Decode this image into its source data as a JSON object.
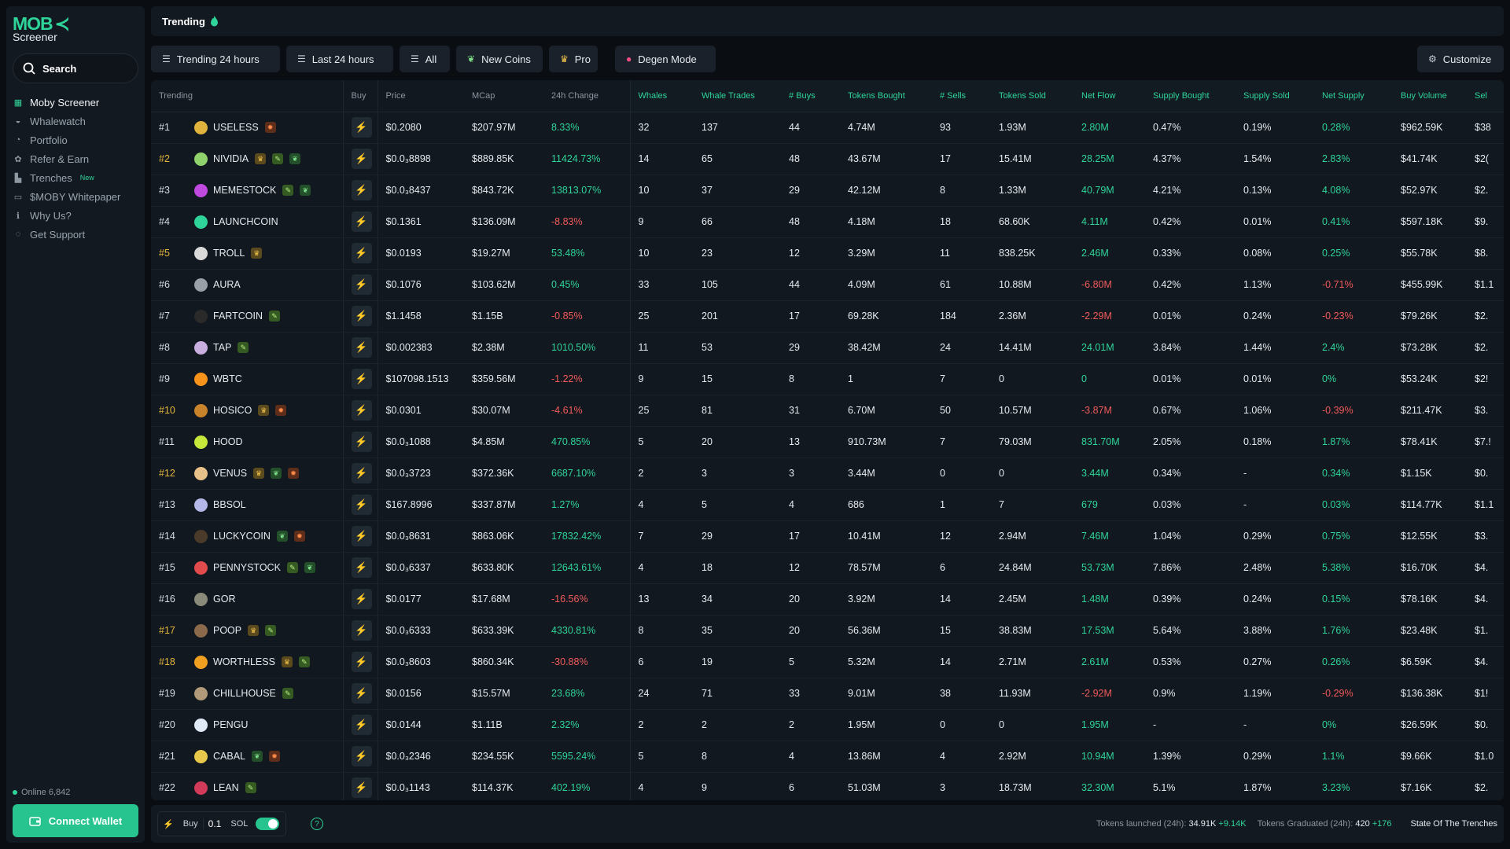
{
  "app": {
    "logo_text": "MOB",
    "logo_sub": "Screener"
  },
  "sidebar": {
    "search_label": "Search",
    "items": [
      {
        "label": "Moby Screener",
        "icon": "moby-icon"
      },
      {
        "label": "Whalewatch",
        "icon": "whale-icon"
      },
      {
        "label": "Portfolio",
        "icon": "pie-chart-icon"
      },
      {
        "label": "Refer & Earn",
        "icon": "gift-icon"
      },
      {
        "label": "Trenches",
        "icon": "chart-icon",
        "badge": "New"
      },
      {
        "label": "$MOBY Whitepaper",
        "icon": "book-icon"
      },
      {
        "label": "Why Us?",
        "icon": "info-icon"
      },
      {
        "label": "Get Support",
        "icon": "headset-icon"
      }
    ],
    "online": "Online 6,842",
    "connect": "Connect Wallet"
  },
  "header": {
    "title": "Trending"
  },
  "toolbar": {
    "trending": "Trending 24 hours",
    "last": "Last 24 hours",
    "all": "All",
    "new_coins": "New Coins",
    "pro": "Pro",
    "degen": "Degen Mode",
    "customize": "Customize"
  },
  "table": {
    "columns": [
      "Trending",
      "Buy",
      "Price",
      "MCap",
      "24h Change",
      "Whales",
      "Whale Trades",
      "# Buys",
      "Tokens Bought",
      "# Sells",
      "Tokens Sold",
      "Net Flow",
      "Supply Bought",
      "Supply Sold",
      "Net Supply",
      "Buy Volume",
      "Sel"
    ],
    "rows": [
      {
        "rank": "#1",
        "gold": false,
        "name": "USELESS",
        "color": "#e0b33c",
        "badges": [
          "fire"
        ],
        "price": "$0.2080",
        "mcap": "$207.97M",
        "change": "8.33%",
        "whales": "32",
        "whale_trades": "137",
        "buys": "44",
        "tokens_bought": "4.74M",
        "sells": "93",
        "tokens_sold": "1.93M",
        "net_flow": "2.80M",
        "supply_bought": "0.47%",
        "supply_sold": "0.19%",
        "net_supply": "0.28%",
        "buy_volume": "$962.59K",
        "sell": "$38"
      },
      {
        "rank": "#2",
        "gold": true,
        "name": "NIVIDIA",
        "color": "#8fd16b",
        "badges": [
          "crown",
          "pill",
          "sprout"
        ],
        "price": "$0.0₃8898",
        "mcap": "$889.85K",
        "change": "11424.73%",
        "whales": "14",
        "whale_trades": "65",
        "buys": "48",
        "tokens_bought": "43.67M",
        "sells": "17",
        "tokens_sold": "15.41M",
        "net_flow": "28.25M",
        "supply_bought": "4.37%",
        "supply_sold": "1.54%",
        "net_supply": "2.83%",
        "buy_volume": "$41.74K",
        "sell": "$2("
      },
      {
        "rank": "#3",
        "gold": false,
        "name": "MEMESTOCK",
        "color": "#c04adf",
        "badges": [
          "pill",
          "sprout"
        ],
        "price": "$0.0₃8437",
        "mcap": "$843.72K",
        "change": "13813.07%",
        "whales": "10",
        "whale_trades": "37",
        "buys": "29",
        "tokens_bought": "42.12M",
        "sells": "8",
        "tokens_sold": "1.33M",
        "net_flow": "40.79M",
        "supply_bought": "4.21%",
        "supply_sold": "0.13%",
        "net_supply": "4.08%",
        "buy_volume": "$52.97K",
        "sell": "$2."
      },
      {
        "rank": "#4",
        "gold": false,
        "name": "LAUNCHCOIN",
        "color": "#2fd49a",
        "badges": [],
        "price": "$0.1361",
        "mcap": "$136.09M",
        "change": "-8.83%",
        "whales": "9",
        "whale_trades": "66",
        "buys": "48",
        "tokens_bought": "4.18M",
        "sells": "18",
        "tokens_sold": "68.60K",
        "net_flow": "4.11M",
        "supply_bought": "0.42%",
        "supply_sold": "0.01%",
        "net_supply": "0.41%",
        "buy_volume": "$597.18K",
        "sell": "$9."
      },
      {
        "rank": "#5",
        "gold": true,
        "name": "TROLL",
        "color": "#d9d9d9",
        "badges": [
          "crown"
        ],
        "price": "$0.0193",
        "mcap": "$19.27M",
        "change": "53.48%",
        "whales": "10",
        "whale_trades": "23",
        "buys": "12",
        "tokens_bought": "3.29M",
        "sells": "11",
        "tokens_sold": "838.25K",
        "net_flow": "2.46M",
        "supply_bought": "0.33%",
        "supply_sold": "0.08%",
        "net_supply": "0.25%",
        "buy_volume": "$55.78K",
        "sell": "$8."
      },
      {
        "rank": "#6",
        "gold": false,
        "name": "AURA",
        "color": "#9aa0a8",
        "badges": [],
        "price": "$0.1076",
        "mcap": "$103.62M",
        "change": "0.45%",
        "whales": "33",
        "whale_trades": "105",
        "buys": "44",
        "tokens_bought": "4.09M",
        "sells": "61",
        "tokens_sold": "10.88M",
        "net_flow": "-6.80M",
        "supply_bought": "0.42%",
        "supply_sold": "1.13%",
        "net_supply": "-0.71%",
        "buy_volume": "$455.99K",
        "sell": "$1.1"
      },
      {
        "rank": "#7",
        "gold": false,
        "name": "FARTCOIN",
        "color": "#2a2a2a",
        "badges": [
          "pill"
        ],
        "price": "$1.1458",
        "mcap": "$1.15B",
        "change": "-0.85%",
        "whales": "25",
        "whale_trades": "201",
        "buys": "17",
        "tokens_bought": "69.28K",
        "sells": "184",
        "tokens_sold": "2.36M",
        "net_flow": "-2.29M",
        "supply_bought": "0.01%",
        "supply_sold": "0.24%",
        "net_supply": "-0.23%",
        "buy_volume": "$79.26K",
        "sell": "$2."
      },
      {
        "rank": "#8",
        "gold": false,
        "name": "TAP",
        "color": "#c9aee0",
        "badges": [
          "pill"
        ],
        "price": "$0.002383",
        "mcap": "$2.38M",
        "change": "1010.50%",
        "whales": "11",
        "whale_trades": "53",
        "buys": "29",
        "tokens_bought": "38.42M",
        "sells": "24",
        "tokens_sold": "14.41M",
        "net_flow": "24.01M",
        "supply_bought": "3.84%",
        "supply_sold": "1.44%",
        "net_supply": "2.4%",
        "buy_volume": "$73.28K",
        "sell": "$2."
      },
      {
        "rank": "#9",
        "gold": false,
        "name": "WBTC",
        "color": "#f7931a",
        "badges": [],
        "price": "$107098.1513",
        "mcap": "$359.56M",
        "change": "-1.22%",
        "whales": "9",
        "whale_trades": "15",
        "buys": "8",
        "tokens_bought": "1",
        "sells": "7",
        "tokens_sold": "0",
        "net_flow": "0",
        "supply_bought": "0.01%",
        "supply_sold": "0.01%",
        "net_supply": "0%",
        "buy_volume": "$53.24K",
        "sell": "$2!"
      },
      {
        "rank": "#10",
        "gold": true,
        "name": "HOSICO",
        "color": "#c9842b",
        "badges": [
          "crown",
          "fire"
        ],
        "price": "$0.0301",
        "mcap": "$30.07M",
        "change": "-4.61%",
        "whales": "25",
        "whale_trades": "81",
        "buys": "31",
        "tokens_bought": "6.70M",
        "sells": "50",
        "tokens_sold": "10.57M",
        "net_flow": "-3.87M",
        "supply_bought": "0.67%",
        "supply_sold": "1.06%",
        "net_supply": "-0.39%",
        "buy_volume": "$211.47K",
        "sell": "$3."
      },
      {
        "rank": "#11",
        "gold": false,
        "name": "HOOD",
        "color": "#c5e83a",
        "badges": [],
        "price": "$0.0₃1088",
        "mcap": "$4.85M",
        "change": "470.85%",
        "whales": "5",
        "whale_trades": "20",
        "buys": "13",
        "tokens_bought": "910.73M",
        "sells": "7",
        "tokens_sold": "79.03M",
        "net_flow": "831.70M",
        "supply_bought": "2.05%",
        "supply_sold": "0.18%",
        "net_supply": "1.87%",
        "buy_volume": "$78.41K",
        "sell": "$7.!"
      },
      {
        "rank": "#12",
        "gold": true,
        "name": "VENUS",
        "color": "#e8c08a",
        "badges": [
          "crown",
          "sprout",
          "fire"
        ],
        "price": "$0.0₃3723",
        "mcap": "$372.36K",
        "change": "6687.10%",
        "whales": "2",
        "whale_trades": "3",
        "buys": "3",
        "tokens_bought": "3.44M",
        "sells": "0",
        "tokens_sold": "0",
        "net_flow": "3.44M",
        "supply_bought": "0.34%",
        "supply_sold": "-",
        "net_supply": "0.34%",
        "buy_volume": "$1.15K",
        "sell": "$0."
      },
      {
        "rank": "#13",
        "gold": false,
        "name": "BBSOL",
        "color": "#b3b8e8",
        "badges": [],
        "price": "$167.8996",
        "mcap": "$337.87M",
        "change": "1.27%",
        "whales": "4",
        "whale_trades": "5",
        "buys": "4",
        "tokens_bought": "686",
        "sells": "1",
        "tokens_sold": "7",
        "net_flow": "679",
        "supply_bought": "0.03%",
        "supply_sold": "-",
        "net_supply": "0.03%",
        "buy_volume": "$114.77K",
        "sell": "$1.1"
      },
      {
        "rank": "#14",
        "gold": false,
        "name": "LUCKYCOIN",
        "color": "#4a3a2a",
        "badges": [
          "sprout",
          "fire"
        ],
        "price": "$0.0₃8631",
        "mcap": "$863.06K",
        "change": "17832.42%",
        "whales": "7",
        "whale_trades": "29",
        "buys": "17",
        "tokens_bought": "10.41M",
        "sells": "12",
        "tokens_sold": "2.94M",
        "net_flow": "7.46M",
        "supply_bought": "1.04%",
        "supply_sold": "0.29%",
        "net_supply": "0.75%",
        "buy_volume": "$12.55K",
        "sell": "$3."
      },
      {
        "rank": "#15",
        "gold": false,
        "name": "PENNYSTOCK",
        "color": "#e24b4b",
        "badges": [
          "pill",
          "sprout"
        ],
        "price": "$0.0₃6337",
        "mcap": "$633.80K",
        "change": "12643.61%",
        "whales": "4",
        "whale_trades": "18",
        "buys": "12",
        "tokens_bought": "78.57M",
        "sells": "6",
        "tokens_sold": "24.84M",
        "net_flow": "53.73M",
        "supply_bought": "7.86%",
        "supply_sold": "2.48%",
        "net_supply": "5.38%",
        "buy_volume": "$16.70K",
        "sell": "$4."
      },
      {
        "rank": "#16",
        "gold": false,
        "name": "GOR",
        "color": "#8a8a7a",
        "badges": [],
        "price": "$0.0177",
        "mcap": "$17.68M",
        "change": "-16.56%",
        "whales": "13",
        "whale_trades": "34",
        "buys": "20",
        "tokens_bought": "3.92M",
        "sells": "14",
        "tokens_sold": "2.45M",
        "net_flow": "1.48M",
        "supply_bought": "0.39%",
        "supply_sold": "0.24%",
        "net_supply": "0.15%",
        "buy_volume": "$78.16K",
        "sell": "$4."
      },
      {
        "rank": "#17",
        "gold": true,
        "name": "POOP",
        "color": "#8a6a4a",
        "badges": [
          "crown",
          "pill"
        ],
        "price": "$0.0₃6333",
        "mcap": "$633.39K",
        "change": "4330.81%",
        "whales": "8",
        "whale_trades": "35",
        "buys": "20",
        "tokens_bought": "56.36M",
        "sells": "15",
        "tokens_sold": "38.83M",
        "net_flow": "17.53M",
        "supply_bought": "5.64%",
        "supply_sold": "3.88%",
        "net_supply": "1.76%",
        "buy_volume": "$23.48K",
        "sell": "$1."
      },
      {
        "rank": "#18",
        "gold": true,
        "name": "WORTHLESS",
        "color": "#f0a020",
        "badges": [
          "crown",
          "pill"
        ],
        "price": "$0.0₃8603",
        "mcap": "$860.34K",
        "change": "-30.88%",
        "whales": "6",
        "whale_trades": "19",
        "buys": "5",
        "tokens_bought": "5.32M",
        "sells": "14",
        "tokens_sold": "2.71M",
        "net_flow": "2.61M",
        "supply_bought": "0.53%",
        "supply_sold": "0.27%",
        "net_supply": "0.26%",
        "buy_volume": "$6.59K",
        "sell": "$4."
      },
      {
        "rank": "#19",
        "gold": false,
        "name": "CHILLHOUSE",
        "color": "#b09a7a",
        "badges": [
          "pill"
        ],
        "price": "$0.0156",
        "mcap": "$15.57M",
        "change": "23.68%",
        "whales": "24",
        "whale_trades": "71",
        "buys": "33",
        "tokens_bought": "9.01M",
        "sells": "38",
        "tokens_sold": "11.93M",
        "net_flow": "-2.92M",
        "supply_bought": "0.9%",
        "supply_sold": "1.19%",
        "net_supply": "-0.29%",
        "buy_volume": "$136.38K",
        "sell": "$1!"
      },
      {
        "rank": "#20",
        "gold": false,
        "name": "PENGU",
        "color": "#dfe8f5",
        "badges": [],
        "price": "$0.0144",
        "mcap": "$1.11B",
        "change": "2.32%",
        "whales": "2",
        "whale_trades": "2",
        "buys": "2",
        "tokens_bought": "1.95M",
        "sells": "0",
        "tokens_sold": "0",
        "net_flow": "1.95M",
        "supply_bought": "-",
        "supply_sold": "-",
        "net_supply": "0%",
        "buy_volume": "$26.59K",
        "sell": "$0."
      },
      {
        "rank": "#21",
        "gold": false,
        "name": "CABAL",
        "color": "#e8c84a",
        "badges": [
          "sprout",
          "fire"
        ],
        "price": "$0.0₃2346",
        "mcap": "$234.55K",
        "change": "5595.24%",
        "whales": "5",
        "whale_trades": "8",
        "buys": "4",
        "tokens_bought": "13.86M",
        "sells": "4",
        "tokens_sold": "2.92M",
        "net_flow": "10.94M",
        "supply_bought": "1.39%",
        "supply_sold": "0.29%",
        "net_supply": "1.1%",
        "buy_volume": "$9.66K",
        "sell": "$1.0"
      },
      {
        "rank": "#22",
        "gold": false,
        "name": "LEAN",
        "color": "#d23a5a",
        "badges": [
          "pill"
        ],
        "price": "$0.0₃1143",
        "mcap": "$114.37K",
        "change": "402.19%",
        "whales": "4",
        "whale_trades": "9",
        "buys": "6",
        "tokens_bought": "51.03M",
        "sells": "3",
        "tokens_sold": "18.73M",
        "net_flow": "32.30M",
        "supply_bought": "5.1%",
        "supply_sold": "1.87%",
        "net_supply": "3.23%",
        "buy_volume": "$7.16K",
        "sell": "$2."
      }
    ]
  },
  "bottom": {
    "buy_label": "Buy",
    "amount": "0.1",
    "currency": "SOL",
    "help": "?",
    "launched_label": "Tokens launched (24h):",
    "launched_value": "34.91K",
    "launched_delta": "+9.14K",
    "graduated_label": "Tokens Graduated (24h):",
    "graduated_value": "420",
    "graduated_delta": "+176",
    "state": "State Of The Trenches"
  },
  "colors": {
    "accent": "#2fd49a",
    "negative": "#f05a5a",
    "gold": "#e5b63c"
  }
}
